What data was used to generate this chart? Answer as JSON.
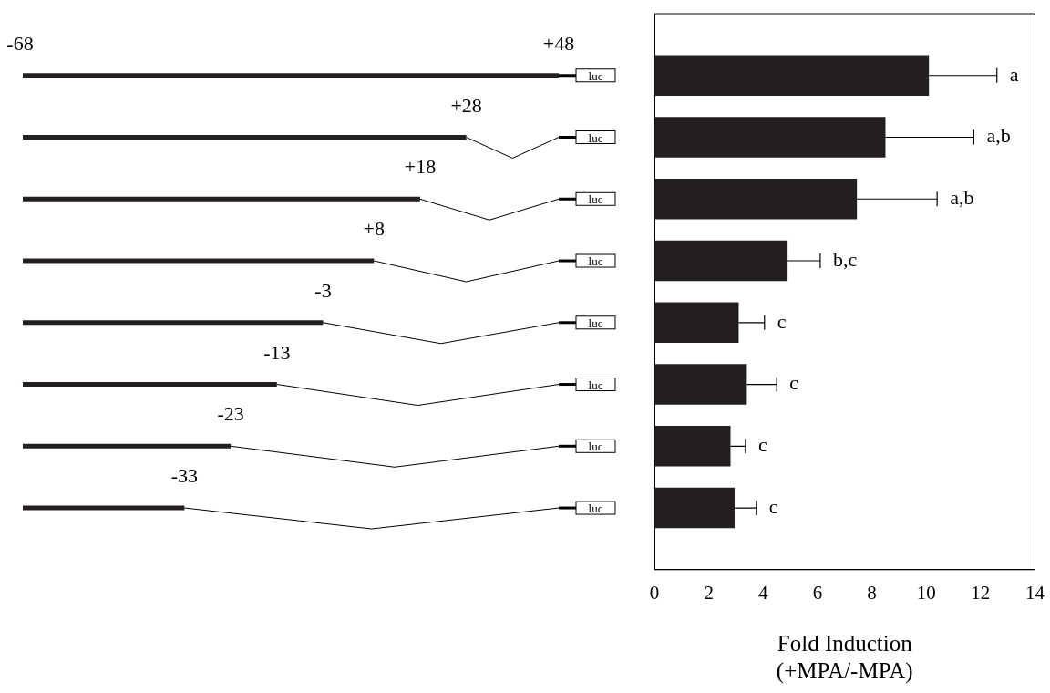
{
  "chart_data": {
    "type": "bar",
    "orientation": "horizontal",
    "xlabel": [
      "Fold Induction",
      "(+MPA/-MPA)"
    ],
    "categories": [
      null,
      null,
      null,
      null,
      null,
      null,
      null,
      null
    ],
    "values": [
      10.1,
      8.5,
      7.45,
      4.9,
      3.1,
      3.4,
      2.8,
      2.95
    ],
    "errors": [
      [
        10.1,
        12.6
      ],
      [
        8.5,
        11.75
      ],
      [
        7.45,
        10.4
      ],
      [
        4.9,
        6.1
      ],
      [
        3.1,
        4.05
      ],
      [
        3.4,
        4.5
      ],
      [
        2.8,
        3.35
      ],
      [
        2.95,
        3.75
      ]
    ],
    "color": "#231f20",
    "xlim": [
      0,
      14
    ],
    "xticks": [
      0,
      2,
      4,
      6,
      8,
      10,
      12,
      14
    ],
    "grid": false,
    "legend": false,
    "annotations": [
      "-68",
      "+48",
      "+28",
      "+18",
      "+8",
      "-3",
      "-13",
      "-23",
      "-33",
      "luc",
      "a",
      "a,b",
      "a,b",
      "b,c",
      "c",
      "c",
      "c",
      "c"
    ]
  }
}
